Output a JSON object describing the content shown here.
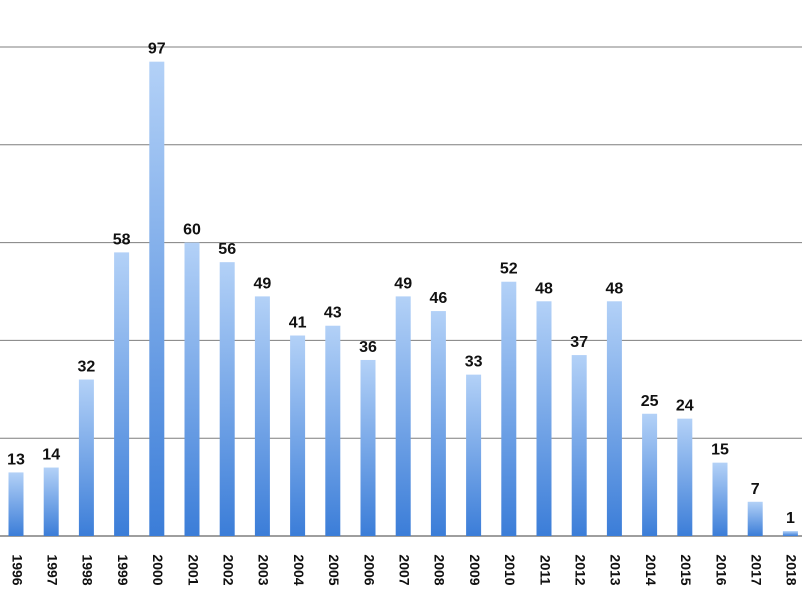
{
  "chart_data": {
    "type": "bar",
    "categories": [
      "1996",
      "1997",
      "1998",
      "1999",
      "2000",
      "2001",
      "2002",
      "2003",
      "2004",
      "2005",
      "2006",
      "2007",
      "2008",
      "2009",
      "2010",
      "2011",
      "2012",
      "2013",
      "2014",
      "2015",
      "2016",
      "2017",
      "2018"
    ],
    "values": [
      13,
      14,
      32,
      58,
      97,
      60,
      56,
      49,
      41,
      43,
      36,
      49,
      46,
      33,
      52,
      48,
      37,
      48,
      25,
      24,
      15,
      7,
      1
    ],
    "title": "",
    "xlabel": "",
    "ylabel": "",
    "ylim": [
      0,
      100
    ],
    "grid": true,
    "legend": "none",
    "colors": {
      "bar_top": "#b3d1f7",
      "bar_bottom": "#3b7dd8",
      "grid": "#7f7f7f",
      "text": "#111111"
    }
  }
}
